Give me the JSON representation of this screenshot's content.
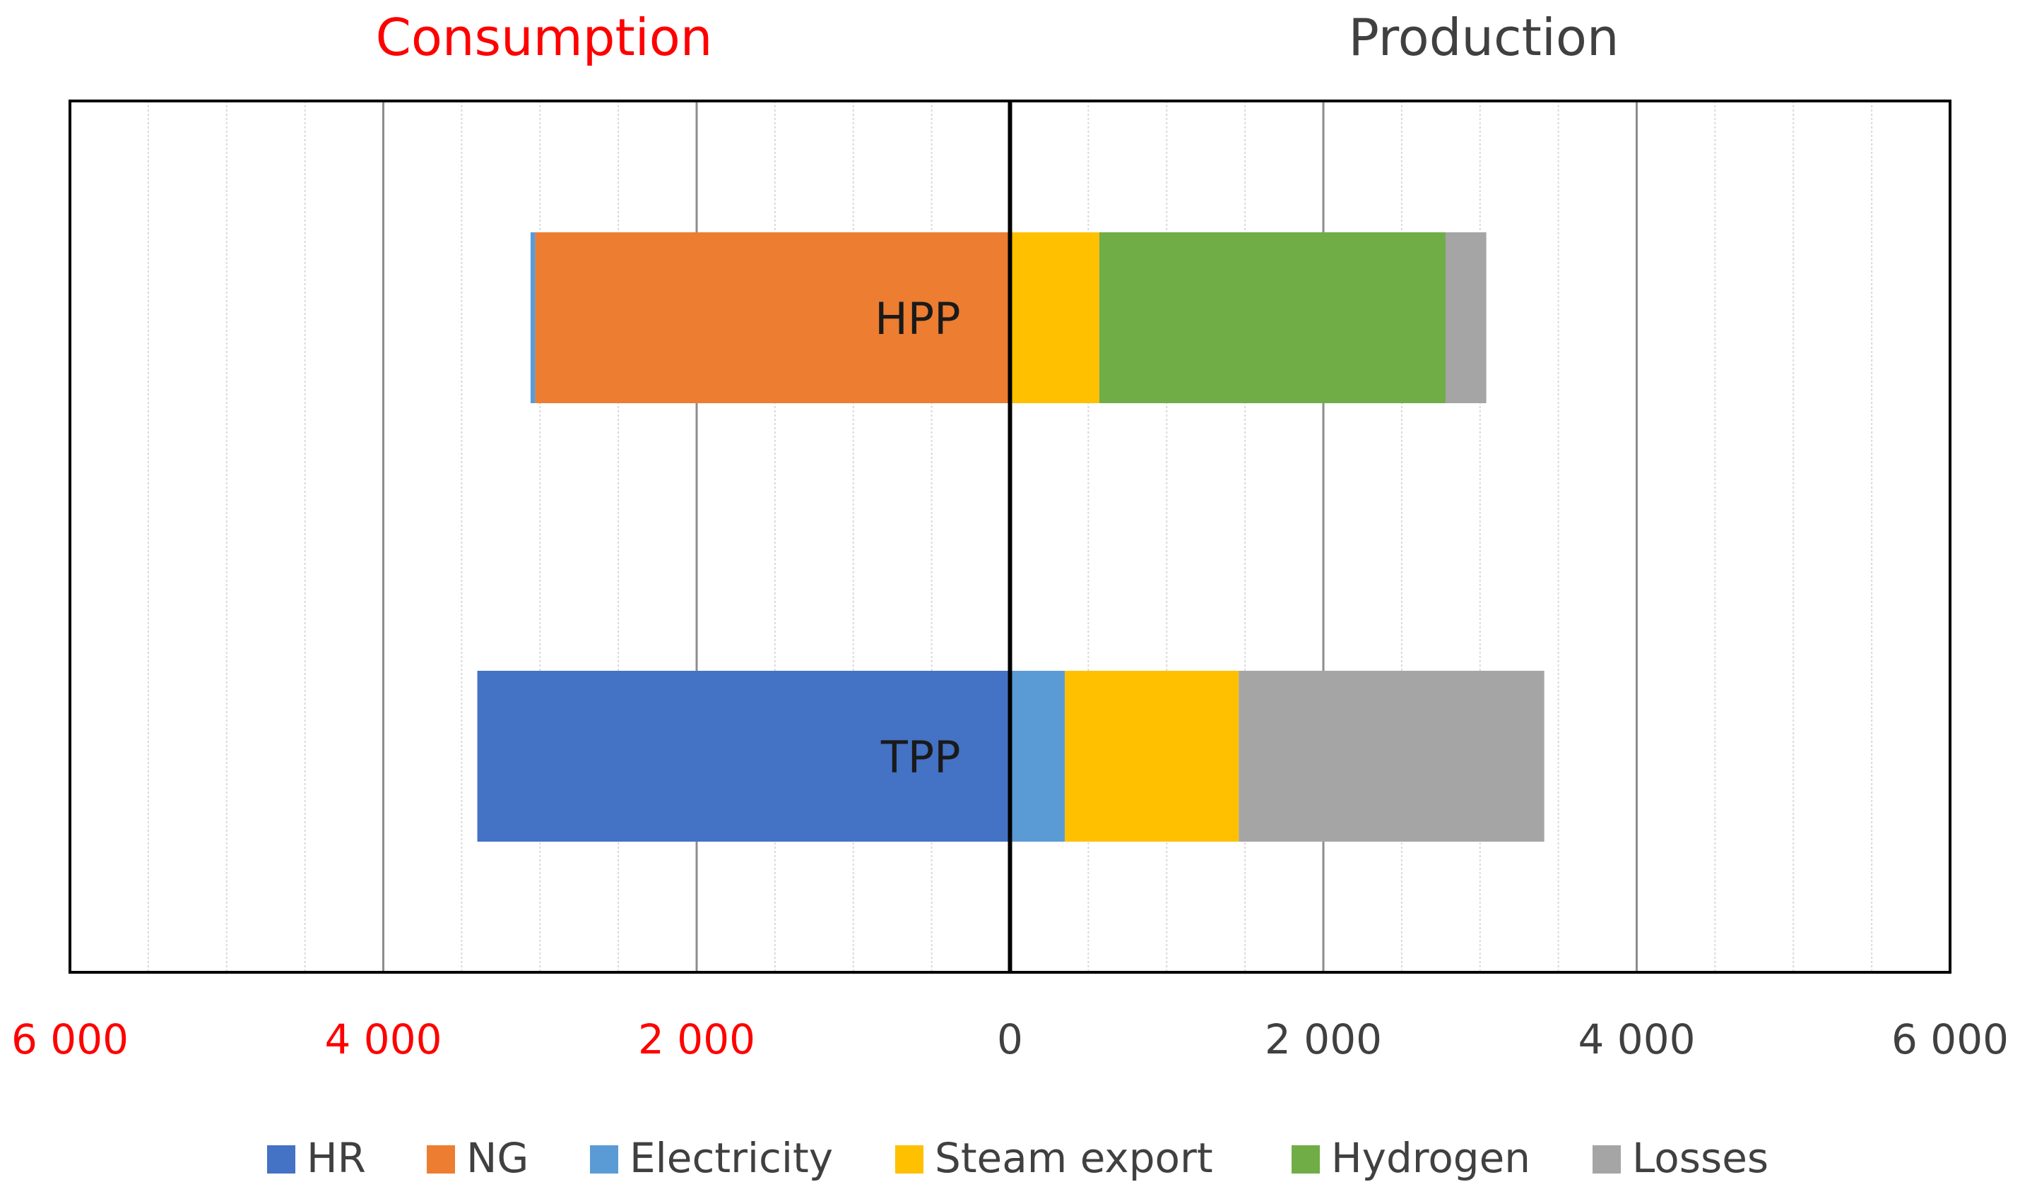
{
  "chart_data": {
    "type": "bar",
    "orientation": "horizontal-stacked-diverging",
    "headers": {
      "left": "Consumption",
      "right": "Production"
    },
    "x_ticks": [
      {
        "value": -6000,
        "label": "6 000"
      },
      {
        "value": -4000,
        "label": "4 000"
      },
      {
        "value": -2000,
        "label": "2 000"
      },
      {
        "value": 0,
        "label": "0"
      },
      {
        "value": 2000,
        "label": "2 000"
      },
      {
        "value": 4000,
        "label": "4 000"
      },
      {
        "value": 6000,
        "label": "6 000"
      }
    ],
    "xlim": [
      -6000,
      6000
    ],
    "grid_major_step": 2000,
    "grid_minor_step": 500,
    "categories": [
      "HPP",
      "TPP"
    ],
    "series": [
      {
        "name": "HR",
        "color": "#4472C4",
        "side": "consumption",
        "values": [
          0,
          3400
        ]
      },
      {
        "name": "NG",
        "color": "#ED7D31",
        "side": "consumption",
        "values": [
          3030,
          0
        ]
      },
      {
        "name": "Electricity",
        "color": "#5B9BD5",
        "side": "consumption",
        "values": [
          30,
          0
        ]
      },
      {
        "name": "Electricity",
        "color": "#5B9BD5",
        "side": "production",
        "values": [
          0,
          350
        ]
      },
      {
        "name": "Steam export",
        "color": "#FFC000",
        "side": "production",
        "values": [
          570,
          1110
        ]
      },
      {
        "name": "Hydrogen",
        "color": "#70AD47",
        "side": "production",
        "values": [
          2210,
          0
        ]
      },
      {
        "name": "Losses",
        "color": "#A5A5A5",
        "side": "production",
        "values": [
          260,
          1950
        ]
      }
    ],
    "legend": [
      {
        "name": "HR",
        "color": "#4472C4"
      },
      {
        "name": "NG",
        "color": "#ED7D31"
      },
      {
        "name": "Electricity",
        "color": "#5B9BD5"
      },
      {
        "name": "Steam export",
        "color": "#FFC000"
      },
      {
        "name": "Hydrogen",
        "color": "#70AD47"
      },
      {
        "name": "Losses",
        "color": "#A5A5A5"
      }
    ],
    "legend_position": "bottom",
    "colors": {
      "negative_label": "#FF0000",
      "positive_label": "#404040",
      "zero_axis": "#000000"
    }
  }
}
